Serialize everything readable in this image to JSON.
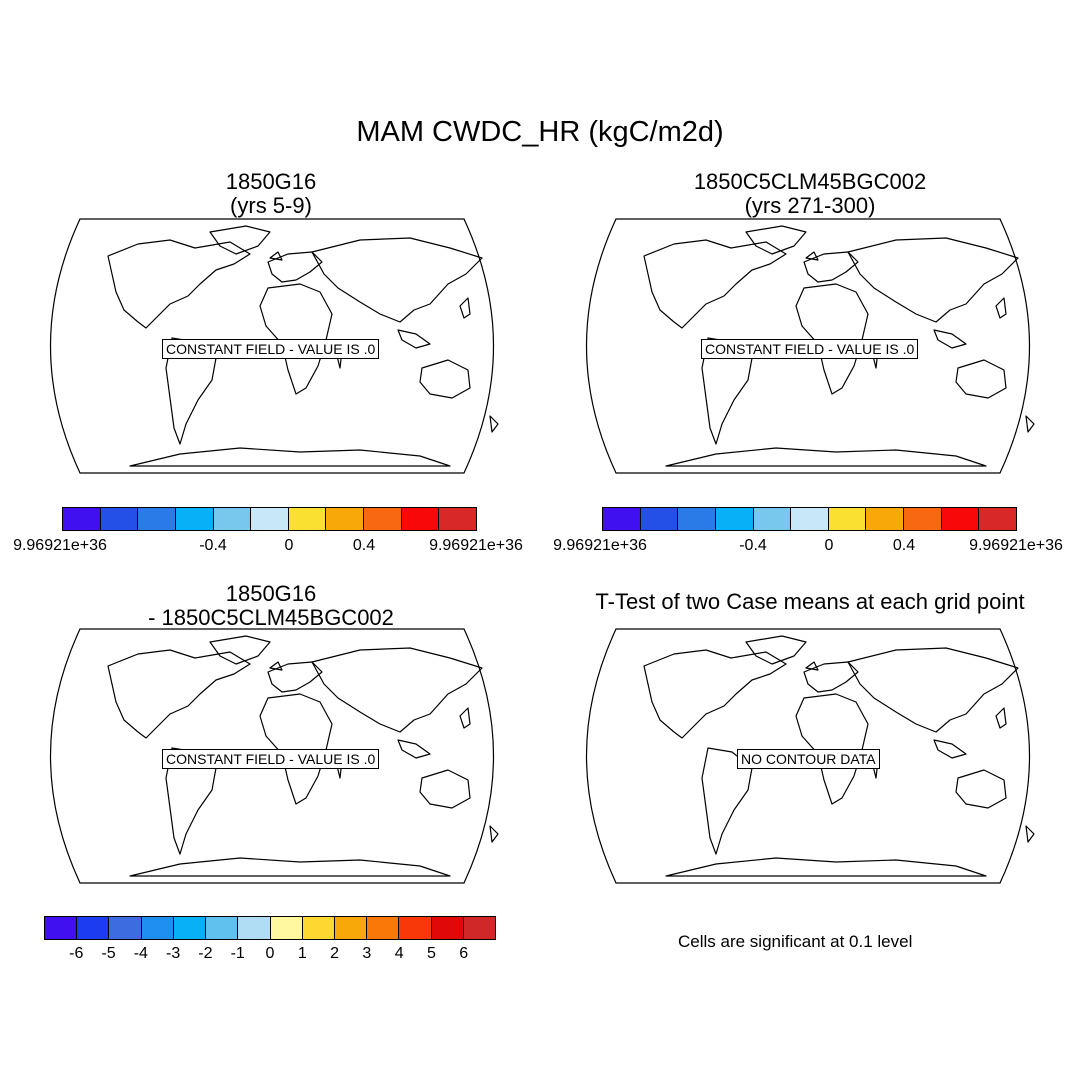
{
  "main_title": "MAM CWDC_HR (kgC/m2d)",
  "panels": [
    {
      "title_line1": "1850G16",
      "title_line2": "(yrs 5-9)",
      "map_label": "CONSTANT FIELD - VALUE IS .0"
    },
    {
      "title_line1": "1850C5CLM45BGC002",
      "title_line2": "(yrs 271-300)",
      "map_label": "CONSTANT FIELD - VALUE IS .0"
    },
    {
      "title_line1": "1850G16",
      "title_line2": "- 1850C5CLM45BGC002",
      "map_label": "CONSTANT FIELD - VALUE IS .0"
    },
    {
      "title_line1": "T-Test of two Case means at each grid point",
      "map_label": "NO CONTOUR DATA"
    }
  ],
  "colorbar_top": {
    "colors": [
      "#4010f0",
      "#2450e8",
      "#2a7ae8",
      "#08b0f8",
      "#78c8ee",
      "#c8e8f8",
      "#fae030",
      "#f8a808",
      "#f86810",
      "#f80808",
      "#d82828"
    ],
    "tick_labels": [
      "9.96921e+36",
      "-0.4",
      "0",
      "0.4",
      "9.96921e+36"
    ]
  },
  "colorbar_diff": {
    "colors": [
      "#4010f0",
      "#1b3cf0",
      "#3c6ce0",
      "#2090f0",
      "#08b0f8",
      "#60c0ee",
      "#b0dcf4",
      "#fff8a0",
      "#fed830",
      "#f8a808",
      "#fa7808",
      "#f83808",
      "#e00808",
      "#d02828"
    ],
    "tick_labels": [
      "-6",
      "-5",
      "-4",
      "-3",
      "-2",
      "-1",
      "0",
      "1",
      "2",
      "3",
      "4",
      "5",
      "6"
    ]
  },
  "significance_note": "Cells are significant at 0.1 level"
}
